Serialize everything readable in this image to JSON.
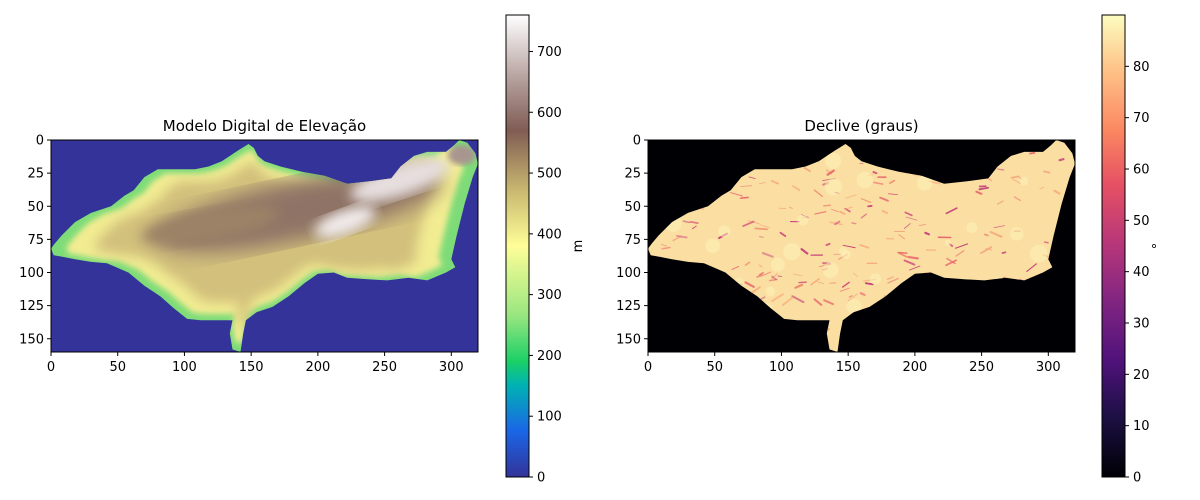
{
  "chart_data": [
    {
      "type": "heatmap",
      "title": "Modelo Digital de Elevação",
      "colormap": "terrain",
      "xlim": [
        0,
        320
      ],
      "ylim": [
        160,
        0
      ],
      "x_ticks": [
        "0",
        "50",
        "100",
        "150",
        "200",
        "250",
        "300"
      ],
      "y_ticks": [
        "0",
        "25",
        "50",
        "75",
        "100",
        "125",
        "150"
      ],
      "value_range": [
        0,
        760
      ],
      "colorbar": {
        "label": "m",
        "ticks": [
          "0",
          "100",
          "200",
          "300",
          "400",
          "500",
          "600",
          "700"
        ],
        "range": [
          0,
          760
        ]
      },
      "background_value": 0,
      "ridge_peak_value": 740
    },
    {
      "type": "heatmap",
      "title": "Declive (graus)",
      "colormap": "magma",
      "xlim": [
        0,
        320
      ],
      "ylim": [
        160,
        0
      ],
      "x_ticks": [
        "0",
        "50",
        "100",
        "150",
        "200",
        "250",
        "300"
      ],
      "y_ticks": [
        "0",
        "25",
        "50",
        "75",
        "100",
        "125",
        "150"
      ],
      "value_range": [
        0,
        90
      ],
      "colorbar": {
        "label": "°",
        "ticks": [
          "0",
          "10",
          "20",
          "30",
          "40",
          "50",
          "60",
          "70",
          "80"
        ],
        "range": [
          0,
          90
        ]
      },
      "background_value": 0,
      "typical_value": 85
    }
  ],
  "region_outline": [
    [
      0,
      82
    ],
    [
      3,
      78
    ],
    [
      8,
      72
    ],
    [
      18,
      62
    ],
    [
      30,
      55
    ],
    [
      45,
      50
    ],
    [
      55,
      42
    ],
    [
      62,
      38
    ],
    [
      70,
      28
    ],
    [
      80,
      22
    ],
    [
      95,
      22
    ],
    [
      108,
      22
    ],
    [
      118,
      20
    ],
    [
      128,
      16
    ],
    [
      140,
      8
    ],
    [
      148,
      3
    ],
    [
      152,
      6
    ],
    [
      155,
      12
    ],
    [
      160,
      16
    ],
    [
      172,
      20
    ],
    [
      188,
      24
    ],
    [
      205,
      27
    ],
    [
      222,
      33
    ],
    [
      240,
      31
    ],
    [
      255,
      29
    ],
    [
      262,
      20
    ],
    [
      272,
      12
    ],
    [
      282,
      9
    ],
    [
      296,
      9
    ],
    [
      302,
      4
    ],
    [
      306,
      0
    ],
    [
      312,
      2
    ],
    [
      318,
      10
    ],
    [
      320,
      18
    ],
    [
      316,
      28
    ],
    [
      310,
      48
    ],
    [
      304,
      72
    ],
    [
      300,
      90
    ],
    [
      303,
      96
    ],
    [
      296,
      100
    ],
    [
      282,
      106
    ],
    [
      268,
      104
    ],
    [
      252,
      106
    ],
    [
      236,
      105
    ],
    [
      222,
      104
    ],
    [
      212,
      100
    ],
    [
      200,
      101
    ],
    [
      190,
      108
    ],
    [
      178,
      118
    ],
    [
      166,
      126
    ],
    [
      154,
      130
    ],
    [
      146,
      136
    ],
    [
      144,
      146
    ],
    [
      142,
      160
    ],
    [
      136,
      158
    ],
    [
      134,
      146
    ],
    [
      136,
      136
    ],
    [
      128,
      136
    ],
    [
      112,
      136
    ],
    [
      102,
      135
    ],
    [
      92,
      127
    ],
    [
      82,
      118
    ],
    [
      70,
      110
    ],
    [
      58,
      100
    ],
    [
      42,
      93
    ],
    [
      30,
      92
    ],
    [
      18,
      90
    ],
    [
      8,
      88
    ],
    [
      2,
      87
    ]
  ]
}
